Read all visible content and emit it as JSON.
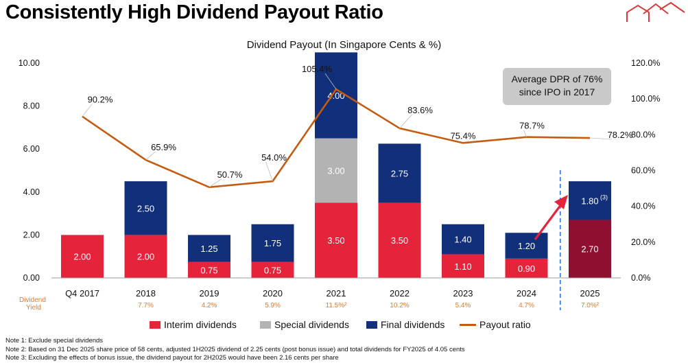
{
  "page": {
    "title": "Consistently High Dividend Payout Ratio",
    "logo_icon": "house-roofline-logo-icon"
  },
  "chart_data": {
    "type": "bar",
    "stacked": true,
    "title": "Dividend Payout (In Singapore Cents & %)",
    "categories": [
      "Q4 2017",
      "2018",
      "2019",
      "2020",
      "2021",
      "2022",
      "2023",
      "2024",
      "2025"
    ],
    "series": [
      {
        "name": "Interim dividends",
        "color": "#e5243b",
        "values": [
          2.0,
          2.0,
          0.75,
          0.75,
          3.5,
          3.5,
          1.1,
          0.9,
          2.7
        ],
        "labels": [
          "2.00",
          "2.00",
          "0.75",
          "0.75",
          "3.50",
          "3.50",
          "1.10",
          "0.90",
          "2.70"
        ]
      },
      {
        "name": "Special dividends",
        "color": "#b3b3b3",
        "values": [
          0,
          0,
          0,
          0,
          3.0,
          0,
          0,
          0,
          0
        ],
        "labels": [
          "",
          "",
          "",
          "",
          "3.00",
          "",
          "",
          "",
          ""
        ]
      },
      {
        "name": "Final dividends",
        "color": "#12307a",
        "values": [
          0,
          2.5,
          1.25,
          1.75,
          4.0,
          2.75,
          1.4,
          1.2,
          1.8
        ],
        "labels": [
          "",
          "2.50",
          "1.25",
          "1.75",
          "4.00",
          "2.75",
          "1.40",
          "1.20",
          "1.80"
        ]
      }
    ],
    "last_bar_interim_color": "#8f0f30",
    "line": {
      "name": "Payout ratio",
      "color": "#c55a11",
      "axis": "right",
      "values": [
        90.2,
        65.9,
        50.7,
        54.0,
        105.4,
        83.6,
        75.4,
        78.7,
        78.2
      ],
      "labels": [
        "90.2%",
        "65.9%",
        "50.7%",
        "54.0%",
        "105.4%",
        "83.6%",
        "75.4%",
        "78.7%",
        "78.2%"
      ]
    },
    "y_left": {
      "min": 0,
      "max": 10,
      "ticks": [
        "0.00",
        "2.00",
        "4.00",
        "6.00",
        "8.00",
        "10.00"
      ]
    },
    "y_right": {
      "min": 0,
      "max": 120,
      "ticks": [
        "0.0%",
        "20.0%",
        "40.0%",
        "60.0%",
        "80.0%",
        "100.0%",
        "120.0%"
      ]
    },
    "dividend_yield": {
      "label_line1": "Dividend",
      "label_line2": "Yield",
      "color": "#e07b2e",
      "values": [
        "7.7%",
        "4.2%",
        "5.9%",
        "11.5%²",
        "10.2%",
        "5.4%",
        "4.7%",
        "7.0%²"
      ]
    },
    "final_2025_superscript": "(3)",
    "legend": [
      "Interim dividends",
      "Special dividends",
      "Final dividends",
      "Payout ratio"
    ],
    "legend_placement": "bottom",
    "grid": false
  },
  "callout": {
    "line1": "Average DPR of 76%",
    "line2": "since IPO in 2017"
  },
  "notes": [
    "Note 1: Exclude special dividends",
    "Note 2: Based on 31 Dec 2025 share price of 58 cents, adjusted 1H2025 dividend of 2.25 cents (post bonus issue) and total dividends for FY2025 of 4.05  cents",
    "Note 3: Excluding the effects of bonus issue, the dividend payout for 2H2025 would have been 2.16 cents per share"
  ]
}
